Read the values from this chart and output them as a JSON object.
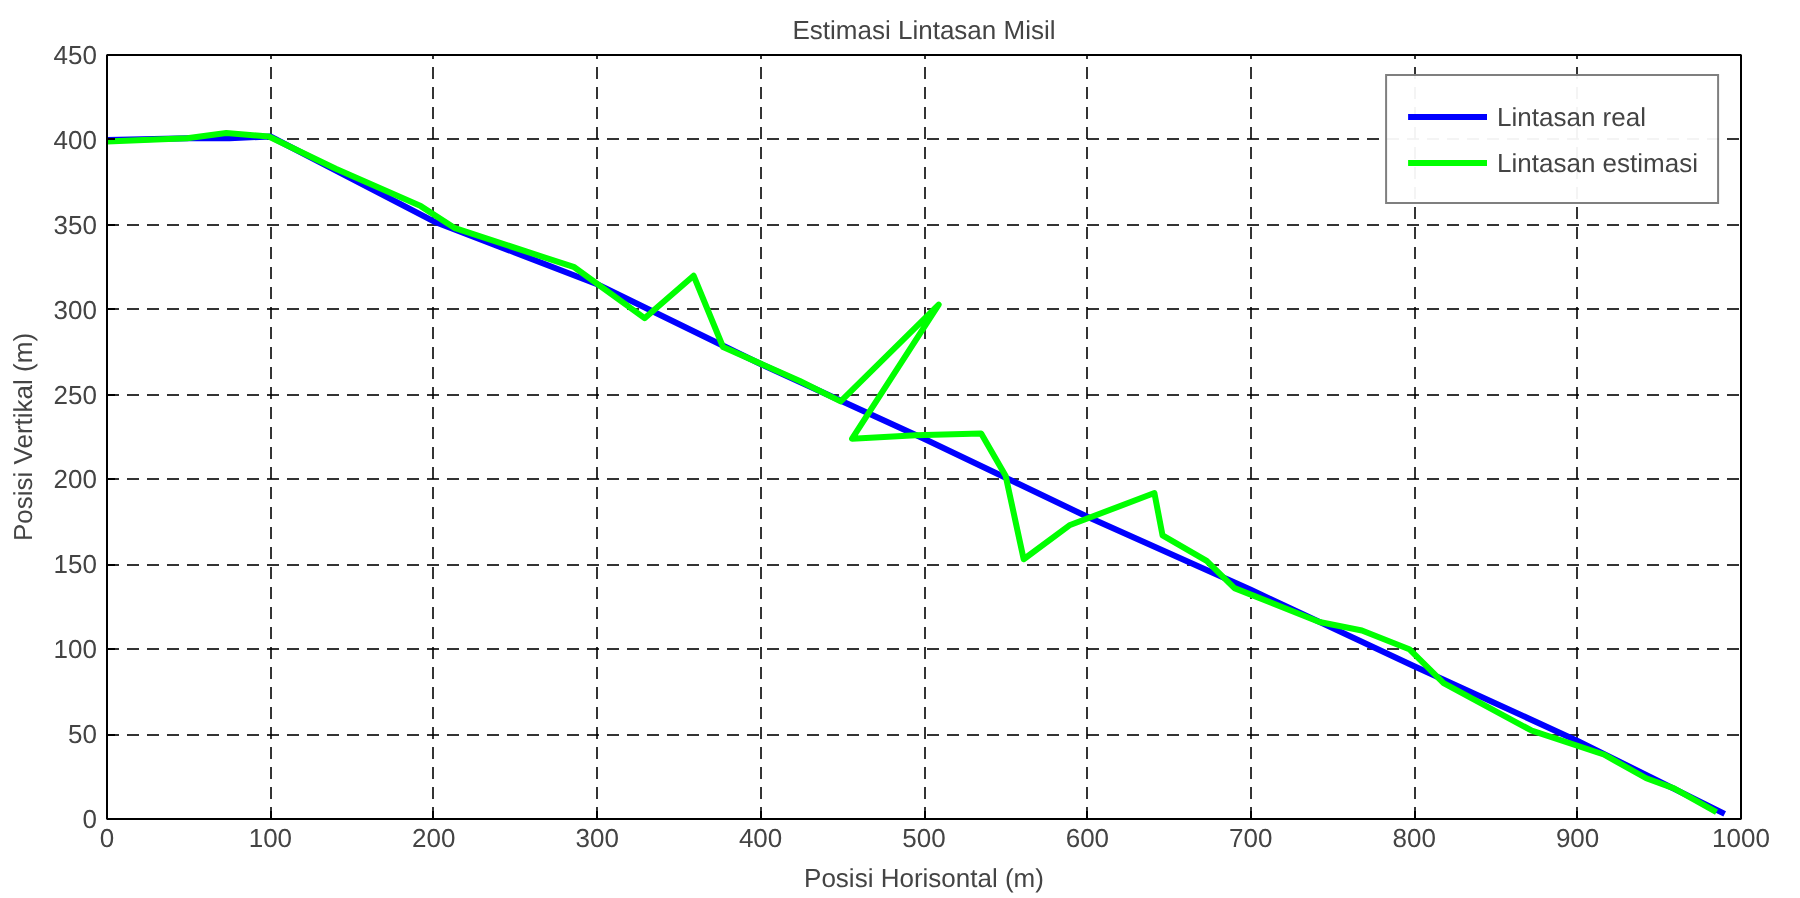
{
  "chart_data": {
    "type": "line",
    "title": "Estimasi Lintasan Misil",
    "xlabel": "Posisi Horisontal (m)",
    "ylabel": "Posisi Vertikal (m)",
    "xlim": [
      0,
      1000
    ],
    "ylim": [
      0,
      450
    ],
    "xticks": [
      0,
      100,
      200,
      300,
      400,
      500,
      600,
      700,
      800,
      900,
      1000
    ],
    "yticks": [
      0,
      50,
      100,
      150,
      200,
      250,
      300,
      350,
      400,
      450
    ],
    "grid": true,
    "legend": "top right",
    "marker": "none",
    "line_style": "solid",
    "series": [
      {
        "name": "Lintasan real",
        "color": "#0000ff",
        "x": [
          0,
          50,
          75,
          100,
          200,
          300,
          400,
          500,
          600,
          700,
          800,
          900,
          990
        ],
        "values": [
          400,
          401,
          401,
          402,
          352,
          315,
          268,
          224,
          178,
          135,
          90,
          46,
          3
        ]
      },
      {
        "name": "Lintasan estimasi",
        "color": "#00ff00",
        "x": [
          0,
          49,
          73,
          99,
          140,
          192,
          213,
          286,
          329,
          359,
          377,
          424,
          449,
          509,
          456,
          495,
          535,
          550,
          561,
          589,
          641,
          646,
          673,
          690,
          742,
          768,
          797,
          818,
          872,
          916,
          942,
          959,
          985
        ],
        "values": [
          399,
          401,
          404,
          402,
          383,
          361,
          348,
          325,
          295,
          320,
          278,
          258,
          246,
          303,
          224,
          226,
          227,
          202,
          153,
          173,
          192,
          167,
          152,
          136,
          116,
          111,
          100,
          80,
          52,
          38,
          24,
          18,
          4
        ]
      }
    ]
  }
}
